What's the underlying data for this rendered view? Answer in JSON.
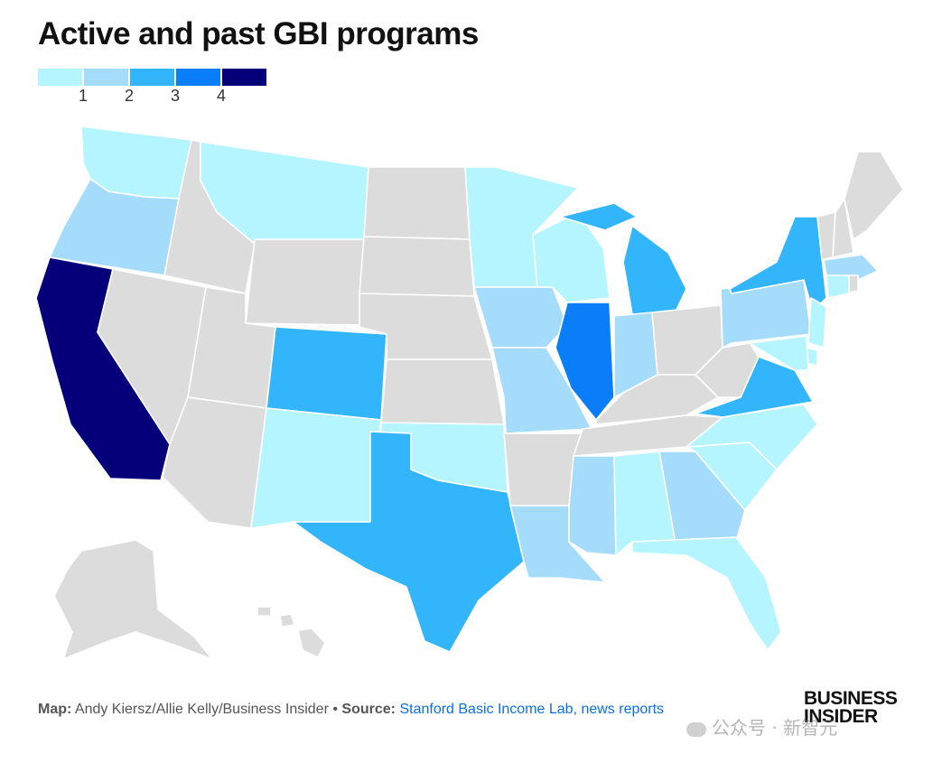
{
  "title": "Active and past GBI programs",
  "legend": {
    "colors": [
      "#b5f5ff",
      "#a6dcfb",
      "#33b5fb",
      "#0a7ef8",
      "#05007a"
    ],
    "ticks": [
      "1",
      "2",
      "3",
      "4"
    ]
  },
  "colors": {
    "none": "#dcdcdc",
    "count_1": "#b5f5ff",
    "count_2": "#a6dcfb",
    "count_3": "#33b5fb",
    "count_4": "#0a7ef8",
    "count_max": "#05007a"
  },
  "states": {
    "WA": 1,
    "OR": 2,
    "CA": 5,
    "MT": 1,
    "CO": 3,
    "NM": 1,
    "TX": 3,
    "OK": 1,
    "MN": 1,
    "WI": 1,
    "IA": 2,
    "MO": 2,
    "IL": 4,
    "MI": 3,
    "IN": 2,
    "LA": 2,
    "MS": 2,
    "AL": 1,
    "GA": 2,
    "FL": 1,
    "SC": 1,
    "NC": 1,
    "VA": 3,
    "NY": 3,
    "PA": 2,
    "NJ": 1,
    "MD": 1,
    "MA": 2,
    "CT": 1,
    "DE": 1,
    "ID": 0,
    "NV": 0,
    "UT": 0,
    "AZ": 0,
    "WY": 0,
    "ND": 0,
    "SD": 0,
    "NE": 0,
    "KS": 0,
    "AR": 0,
    "TN": 0,
    "KY": 0,
    "OH": 0,
    "WV": 0,
    "ME": 0,
    "NH": 0,
    "VT": 0,
    "RI": 0,
    "AK": 0,
    "HI": 0
  },
  "footer": {
    "map_label": "Map:",
    "map_credit": "Andy Kiersz/Allie Kelly/Business Insider",
    "separator": "•",
    "source_label": "Source:",
    "source_text": "Stanford Basic Income Lab, news reports"
  },
  "logo": {
    "line1": "BUSINESS",
    "line2": "INSIDER"
  },
  "watermark": "公众号 · 新智元"
}
